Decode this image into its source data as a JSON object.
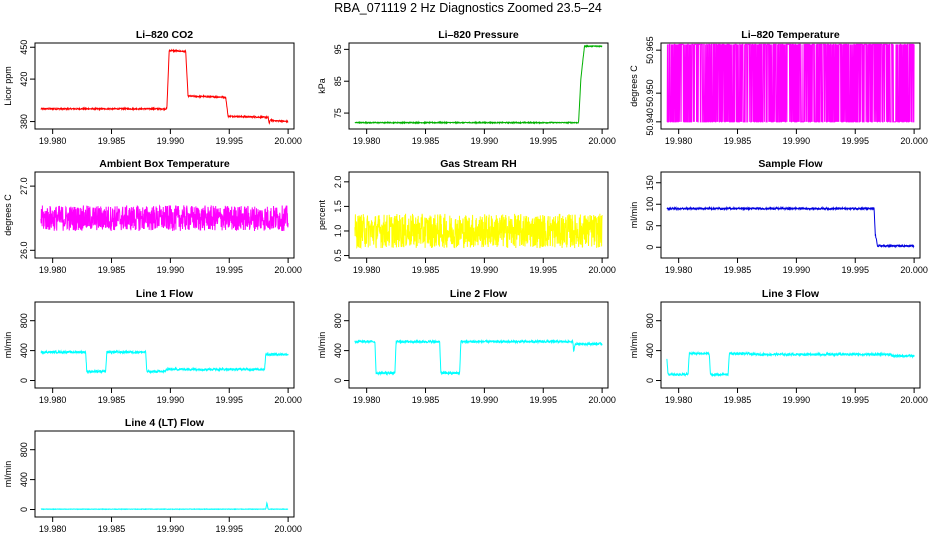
{
  "page": {
    "title": "RBA_071119  2 Hz Diagnostics Zoomed 23.5–24"
  },
  "chart_data": [
    {
      "type": "line",
      "title": "Li–820 CO2",
      "xlabel": "",
      "ylabel": "Licor ppm",
      "color": "#ff0000",
      "xlim": [
        19.9785,
        20.0005
      ],
      "ylim": [
        373,
        454
      ],
      "xticks": [
        19.98,
        19.985,
        19.99,
        19.995,
        20.0
      ],
      "xtick_labels": [
        "19.980",
        "19.985",
        "19.990",
        "19.995",
        "20.000"
      ],
      "yticks": [
        380,
        420,
        450
      ],
      "ytick_labels": [
        "380",
        "420",
        "450"
      ],
      "series": [
        {
          "x": [
            19.979,
            19.9897,
            19.9899,
            19.9913,
            19.9915,
            19.9947,
            19.9949,
            19.9983,
            19.9984,
            19.9985,
            19.9987,
            20.0
          ],
          "y": [
            392,
            392,
            447,
            446,
            404,
            403,
            385,
            384,
            378,
            382,
            381,
            380
          ],
          "noise": 0.6
        }
      ]
    },
    {
      "type": "line",
      "title": "Li–820 Pressure",
      "xlabel": "",
      "ylabel": "kPa",
      "color": "#00b000",
      "xlim": [
        19.9785,
        20.0005
      ],
      "ylim": [
        70,
        97
      ],
      "xticks": [
        19.98,
        19.985,
        19.99,
        19.995,
        20.0
      ],
      "xtick_labels": [
        "19.980",
        "19.985",
        "19.990",
        "19.995",
        "20.000"
      ],
      "yticks": [
        75,
        85,
        95
      ],
      "ytick_labels": [
        "75",
        "85",
        "95"
      ],
      "series": [
        {
          "x": [
            19.979,
            19.998,
            19.9982,
            19.9985,
            20.0
          ],
          "y": [
            72,
            72,
            86,
            96,
            96
          ],
          "noise": 0.15
        }
      ]
    },
    {
      "type": "line",
      "title": "Li–820 Temperature",
      "xlabel": "",
      "ylabel": "degrees C",
      "color": "#ff00ff",
      "xlim": [
        19.9785,
        20.0005
      ],
      "ylim": [
        50.9375,
        50.9675
      ],
      "xticks": [
        19.98,
        19.985,
        19.99,
        19.995,
        20.0
      ],
      "xtick_labels": [
        "19.980",
        "19.985",
        "19.990",
        "19.995",
        "20.000"
      ],
      "yticks": [
        50.94,
        50.95,
        50.965
      ],
      "ytick_labels": [
        "50.940",
        "50.950",
        "50.965"
      ],
      "series": [
        {
          "x": [
            19.979,
            20.0
          ],
          "y": [
            50.94,
            50.967
          ],
          "pattern": "two-level"
        }
      ]
    },
    {
      "type": "line",
      "title": "Ambient Box Temperature",
      "xlabel": "",
      "ylabel": "degrees C",
      "color": "#ff00ff",
      "xlim": [
        19.9785,
        20.0005
      ],
      "ylim": [
        25.88,
        27.22
      ],
      "xticks": [
        19.98,
        19.985,
        19.99,
        19.995,
        20.0
      ],
      "xtick_labels": [
        "19.980",
        "19.985",
        "19.990",
        "19.995",
        "20.000"
      ],
      "yticks": [
        26.0,
        27.0
      ],
      "ytick_labels": [
        "26.0",
        "27.0"
      ],
      "series": [
        {
          "x": [
            19.979,
            20.0
          ],
          "y": [
            26.5,
            26.5
          ],
          "noise": 0.2
        }
      ]
    },
    {
      "type": "line",
      "title": "Gas Stream RH",
      "xlabel": "",
      "ylabel": "percent",
      "color": "#ffff00",
      "xlim": [
        19.9785,
        20.0005
      ],
      "ylim": [
        0.45,
        2.2
      ],
      "xticks": [
        19.98,
        19.985,
        19.99,
        19.995,
        20.0
      ],
      "xtick_labels": [
        "19.980",
        "19.985",
        "19.990",
        "19.995",
        "20.000"
      ],
      "yticks": [
        0.5,
        1.0,
        1.5,
        2.0
      ],
      "ytick_labels": [
        "0.5",
        "1.0",
        "1.5",
        "2.0"
      ],
      "series": [
        {
          "x": [
            19.979,
            20.0
          ],
          "y": [
            1.0,
            1.0
          ],
          "noise": 0.35
        }
      ]
    },
    {
      "type": "line",
      "title": "Sample Flow",
      "xlabel": "",
      "ylabel": "ml/min",
      "color": "#0000e0",
      "xlim": [
        19.9785,
        20.0005
      ],
      "ylim": [
        -25,
        175
      ],
      "xticks": [
        19.98,
        19.985,
        19.99,
        19.995,
        20.0
      ],
      "xtick_labels": [
        "19.980",
        "19.985",
        "19.990",
        "19.995",
        "20.000"
      ],
      "yticks": [
        0,
        50,
        100,
        150
      ],
      "ytick_labels": [
        "0",
        "50",
        "100",
        "150"
      ],
      "series": [
        {
          "x": [
            19.979,
            19.9966,
            19.9967,
            19.9969,
            20.0
          ],
          "y": [
            90,
            90,
            30,
            3,
            3
          ],
          "noise": 2
        }
      ]
    },
    {
      "type": "line",
      "title": "Line 1 Flow",
      "xlabel": "",
      "ylabel": "ml/min",
      "color": "#00ffff",
      "xlim": [
        19.9785,
        20.0005
      ],
      "ylim": [
        -100,
        1050
      ],
      "xticks": [
        19.98,
        19.985,
        19.99,
        19.995,
        20.0
      ],
      "xtick_labels": [
        "19.980",
        "19.985",
        "19.990",
        "19.995",
        "20.000"
      ],
      "yticks": [
        0,
        400,
        800
      ],
      "ytick_labels": [
        "0",
        "400",
        "800"
      ],
      "series": [
        {
          "x": [
            19.979,
            19.9828,
            19.9829,
            19.9845,
            19.9846,
            19.9879,
            19.988,
            19.9895,
            19.9897,
            19.998,
            19.9981,
            20.0
          ],
          "y": [
            380,
            380,
            120,
            120,
            380,
            380,
            120,
            120,
            150,
            150,
            350,
            350
          ],
          "noise": 15
        }
      ]
    },
    {
      "type": "line",
      "title": "Line 2 Flow",
      "xlabel": "",
      "ylabel": "ml/min",
      "color": "#00ffff",
      "xlim": [
        19.9785,
        20.0005
      ],
      "ylim": [
        -100,
        1050
      ],
      "xticks": [
        19.98,
        19.985,
        19.99,
        19.995,
        20.0
      ],
      "xtick_labels": [
        "19.980",
        "19.985",
        "19.990",
        "19.995",
        "20.000"
      ],
      "yticks": [
        0,
        400,
        800
      ],
      "ytick_labels": [
        "0",
        "400",
        "800"
      ],
      "series": [
        {
          "x": [
            19.979,
            19.9807,
            19.9808,
            19.9824,
            19.9825,
            19.9862,
            19.9863,
            19.9879,
            19.988,
            19.9975,
            19.9976,
            19.9977,
            20.0
          ],
          "y": [
            520,
            520,
            100,
            100,
            520,
            520,
            100,
            100,
            520,
            520,
            380,
            490,
            490
          ],
          "noise": 15
        }
      ]
    },
    {
      "type": "line",
      "title": "Line 3 Flow",
      "xlabel": "",
      "ylabel": "ml/min",
      "color": "#00ffff",
      "xlim": [
        19.9785,
        20.0005
      ],
      "ylim": [
        -100,
        1050
      ],
      "xticks": [
        19.98,
        19.985,
        19.99,
        19.995,
        20.0
      ],
      "xtick_labels": [
        "19.980",
        "19.985",
        "19.990",
        "19.995",
        "20.000"
      ],
      "yticks": [
        0,
        400,
        800
      ],
      "ytick_labels": [
        "0",
        "400",
        "800"
      ],
      "series": [
        {
          "x": [
            19.979,
            19.9791,
            19.9808,
            19.9809,
            19.9826,
            19.9827,
            19.9842,
            19.9843,
            19.986,
            19.9861,
            19.998,
            19.9981,
            20.0
          ],
          "y": [
            300,
            80,
            80,
            360,
            360,
            80,
            80,
            360,
            360,
            350,
            350,
            330,
            330
          ],
          "noise": 15
        }
      ]
    },
    {
      "type": "line",
      "title": "Line 4 (LT) Flow",
      "xlabel": "",
      "ylabel": "ml/min",
      "color": "#00ffff",
      "xlim": [
        19.9785,
        20.0005
      ],
      "ylim": [
        -100,
        1050
      ],
      "xticks": [
        19.98,
        19.985,
        19.99,
        19.995,
        20.0
      ],
      "xtick_labels": [
        "19.980",
        "19.985",
        "19.990",
        "19.995",
        "20.000"
      ],
      "yticks": [
        0,
        400,
        800
      ],
      "ytick_labels": [
        "0",
        "400",
        "800"
      ],
      "series": [
        {
          "x": [
            19.979,
            19.9981,
            19.9982,
            19.9983,
            20.0
          ],
          "y": [
            5,
            5,
            90,
            5,
            5
          ],
          "noise": 3
        }
      ]
    }
  ]
}
